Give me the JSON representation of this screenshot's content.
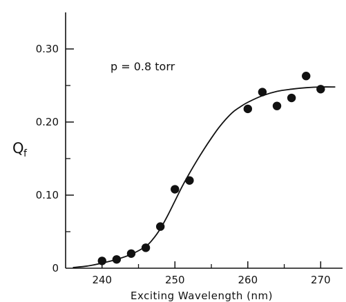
{
  "chart_data": {
    "type": "scatter",
    "xlabel": "Exciting   Wavelength  (nm)",
    "ylabel": "Q",
    "ylabel_subscript": "f",
    "annotation": "p = 0.8 torr",
    "xlim": [
      235,
      273
    ],
    "ylim": [
      0,
      0.35
    ],
    "x_tick_labels": [
      "240",
      "250",
      "260",
      "270"
    ],
    "y_tick_labels": [
      "0",
      "0.10",
      "0.20",
      "0.30"
    ],
    "series": [
      {
        "type": "scatter",
        "x": [
          240,
          242,
          244,
          246,
          248,
          250,
          252,
          260,
          262,
          264,
          266,
          268,
          270
        ],
        "y": [
          0.01,
          0.012,
          0.02,
          0.028,
          0.057,
          0.108,
          0.12,
          0.218,
          0.241,
          0.222,
          0.233,
          0.263,
          0.245
        ]
      },
      {
        "type": "line",
        "x": [
          236,
          238,
          240,
          242,
          244,
          246,
          247,
          248,
          249,
          250,
          251,
          252,
          253,
          254,
          255,
          256,
          257,
          258,
          259,
          260,
          262,
          264,
          266,
          268,
          270,
          272
        ],
        "y": [
          0.001,
          0.003,
          0.007,
          0.012,
          0.019,
          0.03,
          0.04,
          0.054,
          0.072,
          0.092,
          0.112,
          0.13,
          0.147,
          0.163,
          0.178,
          0.192,
          0.204,
          0.214,
          0.221,
          0.227,
          0.236,
          0.242,
          0.245,
          0.247,
          0.248,
          0.248
        ]
      }
    ],
    "grid": false
  }
}
